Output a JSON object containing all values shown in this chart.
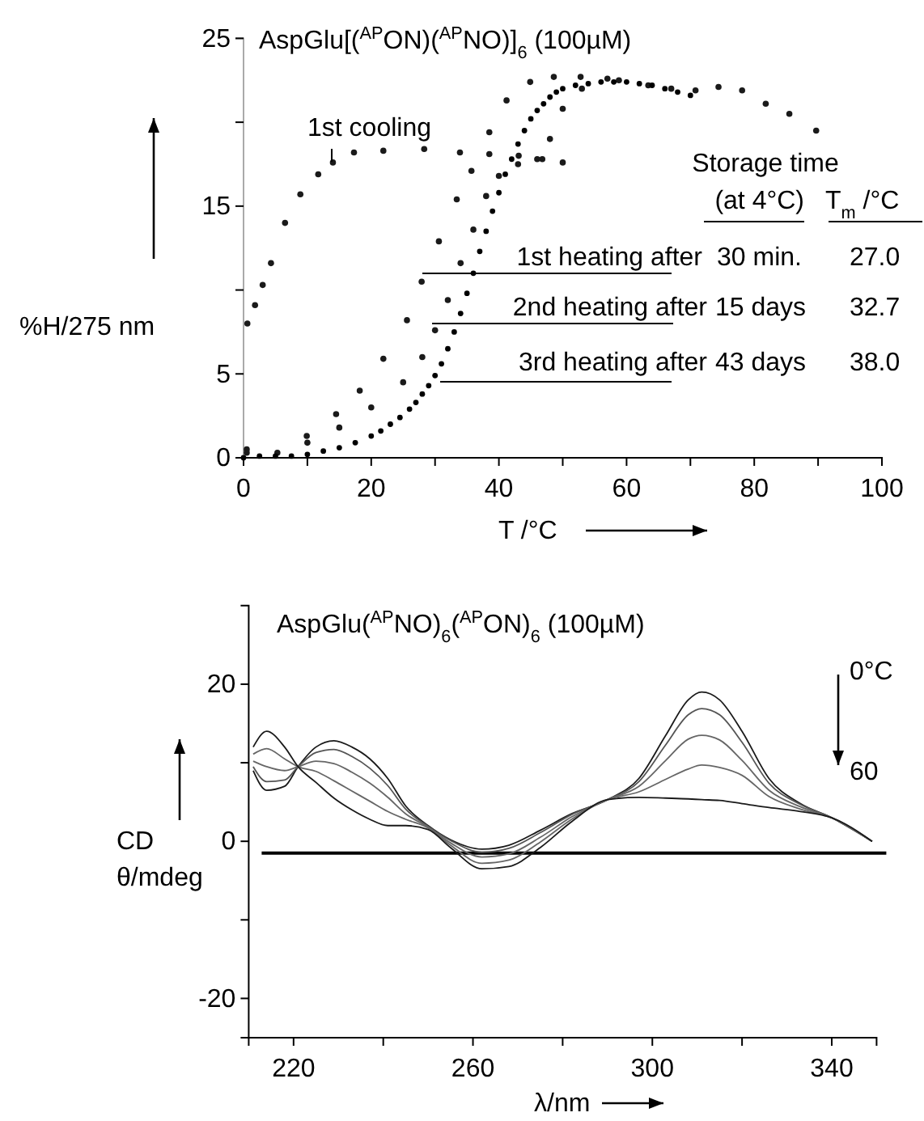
{
  "chart_data": [
    {
      "type": "scatter",
      "title": "AspGlu[($^{AP}$ON)($^{AP}$NO)]$_{6}$ (100µM)",
      "xlabel": "T /°C",
      "ylabel": "%H/275 nm",
      "marker": "circle",
      "xlim": [
        0,
        100
      ],
      "ylim": [
        0,
        25
      ],
      "xticks": [
        0,
        {
          "value": 10,
          "label": null
        },
        20,
        {
          "value": 30,
          "label": null
        },
        40,
        {
          "value": 50,
          "label": null
        },
        60,
        {
          "value": 70,
          "label": null
        },
        80,
        {
          "value": 90,
          "label": null
        },
        100
      ],
      "yticks": [
        0,
        5,
        {
          "value": 10,
          "label": null
        },
        15,
        {
          "value": 20,
          "label": null
        },
        25
      ],
      "series": [
        {
          "name": "1st cooling",
          "color": "#1a1a1a",
          "x": [
            0.6,
            1.8,
            3.0,
            4.3,
            6.5,
            8.9,
            11.7,
            14.0,
            17.3,
            21.9,
            28.3,
            33.9,
            38.5,
            43.1,
            46.8,
            50.0
          ],
          "values": [
            8.0,
            9.1,
            10.3,
            11.6,
            14.0,
            15.7,
            16.9,
            17.6,
            18.2,
            18.3,
            18.4,
            18.2,
            18.1,
            18.0,
            17.8,
            17.6
          ]
        },
        {
          "name": "1st heating after",
          "color": "#1a1a1a",
          "x": [
            0.5,
            5.3,
            9.9,
            14.5,
            18.2,
            21.9,
            25.6,
            27.9,
            30.6,
            33.4,
            35.7,
            38.5,
            41.2,
            44.9,
            48.6,
            52.8,
            58.8,
            63.4,
            70.8,
            74.4,
            78.1,
            81.8,
            85.5,
            89.7
          ],
          "values": [
            0.3,
            0.3,
            1.3,
            2.6,
            4.0,
            5.9,
            8.2,
            10.5,
            12.9,
            15.4,
            17.1,
            19.4,
            21.3,
            22.4,
            22.7,
            22.7,
            22.5,
            22.2,
            21.9,
            22.1,
            21.9,
            21.1,
            20.5,
            19.5
          ]
        },
        {
          "name": "2nd heating after",
          "color": "#1a1a1a",
          "x": [
            0.5,
            10,
            15,
            20,
            25,
            28,
            30,
            32,
            34,
            36,
            38,
            40,
            43,
            46,
            48,
            50,
            53,
            57,
            67
          ],
          "values": [
            0.5,
            0.9,
            1.8,
            3.0,
            4.5,
            6.0,
            7.6,
            9.4,
            11.6,
            13.6,
            15.6,
            16.8,
            17.5,
            17.8,
            19.0,
            20.8,
            22.0,
            22.6,
            22.0
          ]
        },
        {
          "name": "3rd heating after",
          "color": "#000000",
          "x": [
            0,
            2.5,
            5,
            7.5,
            10,
            12.5,
            15,
            17.5,
            20,
            21.5,
            23,
            24.5,
            26,
            27,
            28,
            29,
            30,
            31,
            32,
            33,
            34,
            35,
            36,
            37,
            38,
            39,
            40,
            41,
            42,
            43,
            44,
            45,
            46,
            47,
            48,
            49,
            50,
            52,
            54,
            56,
            58,
            60,
            62,
            64,
            66,
            68,
            70
          ],
          "values": [
            0,
            0.1,
            0.1,
            0.1,
            0.2,
            0.4,
            0.6,
            0.9,
            1.3,
            1.6,
            2.0,
            2.4,
            2.9,
            3.3,
            3.8,
            4.3,
            4.9,
            5.6,
            6.5,
            7.5,
            8.6,
            9.8,
            11.0,
            12.3,
            13.5,
            14.7,
            15.8,
            16.9,
            17.8,
            18.7,
            19.5,
            20.2,
            20.7,
            21.1,
            21.5,
            21.8,
            22.0,
            22.2,
            22.3,
            22.4,
            22.4,
            22.4,
            22.3,
            22.2,
            22.0,
            21.8,
            21.6
          ]
        }
      ],
      "annotations": [
        "Storage time",
        "(at 4°C)",
        "T$_{m}$ /°C",
        "30 min.",
        "15 days",
        "43 days",
        "27.0",
        "32.7",
        "38.0"
      ]
    },
    {
      "type": "line",
      "title": "AspGlu($^{AP}$NO)$_{6}$($^{AP}$ON)$_{6}$ (100µM)",
      "xlabel": "λ/nm",
      "ylabel": "CD θ/mdeg",
      "line_style": "solid",
      "xlim": [
        210,
        350
      ],
      "ylim": [
        -25,
        30
      ],
      "xticks": [
        220,
        {
          "value": 240,
          "label": null
        },
        260,
        {
          "value": 280,
          "label": null
        },
        300,
        {
          "value": 320,
          "label": null
        },
        340
      ],
      "yticks": [
        -20,
        {
          "value": -10,
          "label": null
        },
        0,
        {
          "value": 10,
          "label": null
        },
        20
      ],
      "x": [
        211,
        214,
        218,
        221,
        225,
        229,
        233,
        237,
        241,
        245,
        250,
        255,
        262,
        268,
        275,
        282,
        290,
        297,
        303,
        308,
        311,
        315,
        320,
        326,
        333,
        340,
        349
      ],
      "series": [
        {
          "color": "#1a1a1a",
          "values": [
            9,
            6.5,
            7,
            9.5,
            12,
            12.8,
            12,
            10.5,
            8,
            4.5,
            2,
            0.2,
            -1,
            -0.5,
            1.4,
            3.5,
            5.3,
            8,
            13.5,
            18,
            19,
            18,
            14,
            8,
            4.8,
            3,
            0
          ]
        },
        {
          "color": "#555555",
          "values": [
            9.5,
            7.6,
            7.8,
            9.5,
            11.3,
            11.7,
            10.8,
            9.3,
            7.1,
            4.1,
            1.9,
            0.1,
            -1.4,
            -0.9,
            1.1,
            3.4,
            5.3,
            7.6,
            12.3,
            16.1,
            16.9,
            16.1,
            12.6,
            7.4,
            4.7,
            3,
            0
          ]
        },
        {
          "color": "#666666",
          "values": [
            10.2,
            9.5,
            9,
            9.5,
            10.2,
            9.9,
            8.8,
            7.4,
            5.6,
            3.5,
            1.8,
            -0.2,
            -2,
            -1.6,
            0.5,
            3.1,
            5.3,
            7,
            10.3,
            13,
            13.5,
            12.9,
            10.3,
            6.5,
            4.4,
            3,
            0
          ]
        },
        {
          "color": "#666666",
          "values": [
            11.1,
            11.8,
            10.5,
            9.5,
            8.9,
            7.7,
            6.4,
            5.1,
            3.8,
            2.8,
            1.7,
            -0.5,
            -2.8,
            -2.4,
            -0.1,
            2.8,
            5.3,
            6.3,
            7.9,
            9.2,
            9.7,
            9.4,
            8.4,
            5.7,
            4.1,
            3,
            0
          ]
        },
        {
          "color": "#1a1a1a",
          "values": [
            12,
            14,
            12,
            9.5,
            7.5,
            5.5,
            4,
            2.8,
            2,
            2,
            1.5,
            -0.8,
            -3.5,
            -3.2,
            -0.8,
            2.5,
            5.3,
            5.6,
            5.5,
            5.4,
            5.3,
            5.2,
            4.8,
            4.3,
            3.8,
            3,
            0
          ]
        }
      ],
      "ref_lines": [
        {
          "axis": "y",
          "value": -1.5,
          "color": "#000000"
        }
      ],
      "annotations": [
        "0°C",
        "60"
      ]
    }
  ]
}
